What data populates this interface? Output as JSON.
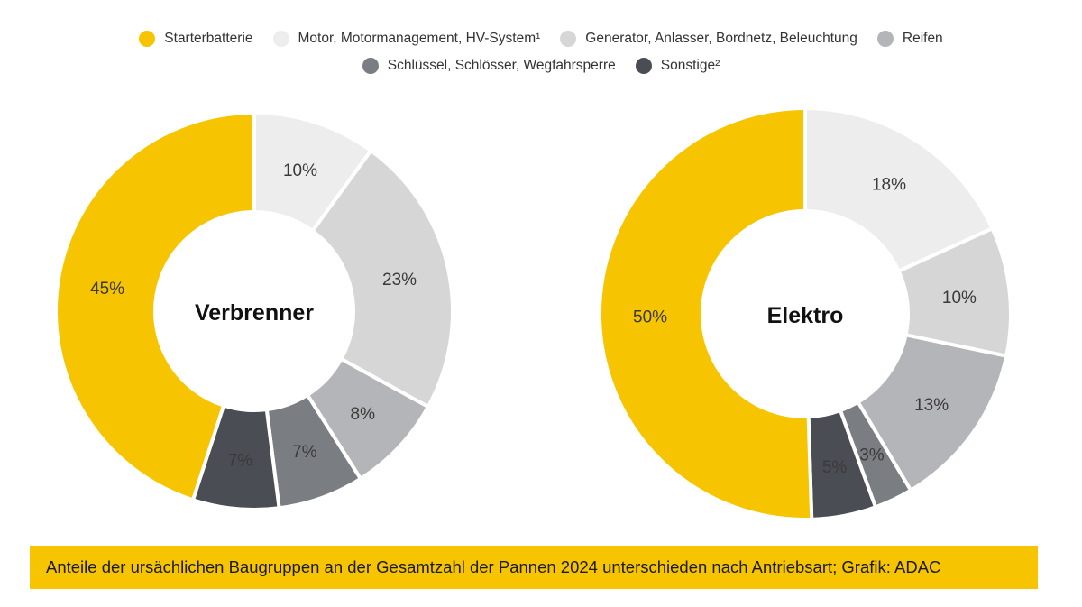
{
  "legend": {
    "rows": [
      [
        {
          "label": "Starterbatterie",
          "color": "#f6c400"
        },
        {
          "label": "Motor, Motormanagement, HV-System¹",
          "color": "#ededed"
        },
        {
          "label": "Generator, Anlasser, Bordnetz, Beleuchtung",
          "color": "#d6d6d6"
        },
        {
          "label": "Reifen",
          "color": "#b4b5b8"
        }
      ],
      [
        {
          "label": "Schlüssel, Schlösser, Wegfahrsperre",
          "color": "#7a7d82"
        },
        {
          "label": "Sonstige²",
          "color": "#4a4d53"
        }
      ]
    ]
  },
  "chart_data": [
    {
      "type": "pie",
      "title": "Verbrenner",
      "categories": [
        "Starterbatterie",
        "Motor, Motormanagement, HV-System¹",
        "Generator, Anlasser, Bordnetz, Beleuchtung",
        "Reifen",
        "Schlüssel, Schlösser, Wegfahrsperre",
        "Sonstige²"
      ],
      "values": [
        45,
        10,
        23,
        8,
        7,
        7
      ],
      "labels": [
        "45%",
        "10%",
        "23%",
        "8%",
        "7%",
        "7%"
      ],
      "colors": [
        "#f6c400",
        "#ededed",
        "#d6d6d6",
        "#b4b5b8",
        "#7a7d82",
        "#4a4d53"
      ]
    },
    {
      "type": "pie",
      "title": "Elektro",
      "categories": [
        "Starterbatterie",
        "Motor, Motormanagement, HV-System¹",
        "Generator, Anlasser, Bordnetz, Beleuchtung",
        "Reifen",
        "Schlüssel, Schlösser, Wegfahrsperre",
        "Sonstige²"
      ],
      "values": [
        50,
        18,
        10,
        13,
        3,
        5
      ],
      "labels": [
        "50%",
        "18%",
        "10%",
        "13%",
        "3%",
        "5%"
      ],
      "colors": [
        "#f6c400",
        "#ededed",
        "#d6d6d6",
        "#b4b5b8",
        "#7a7d82",
        "#4a4d53"
      ]
    }
  ],
  "caption": "Anteile der ursächlichen Baugruppen an der Gesamtzahl der Pannen 2024 unterschieden nach Antriebsart; Grafik: ADAC"
}
